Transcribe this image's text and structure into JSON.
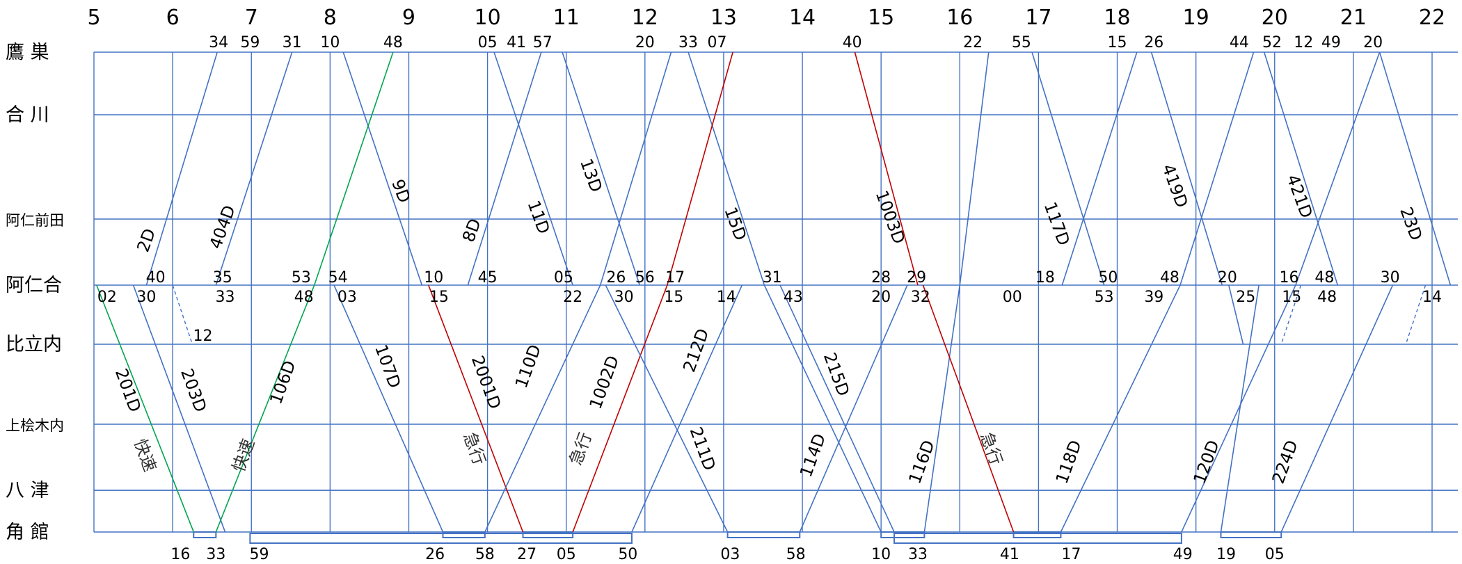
{
  "stations": [
    "鷹 巣",
    "合 川",
    "阿仁前田",
    "阿仁合",
    "比立内",
    "上桧木内",
    "八 津",
    "角 館"
  ],
  "hours": [
    "5",
    "6",
    "7",
    "8",
    "9",
    "10",
    "11",
    "12",
    "13",
    "14",
    "15",
    "16",
    "17",
    "18",
    "19",
    "20",
    "21",
    "22"
  ],
  "colors": {
    "grid": "#4472C4",
    "line": "#4472C4",
    "rapid": "#00A550",
    "express": "#C00000"
  },
  "trains": [
    {
      "name": "2D",
      "stops": [
        {
          "st": 3,
          "t": "5:40"
        },
        {
          "st": 0,
          "t": "6:34"
        }
      ]
    },
    {
      "name": "404D",
      "stops": [
        {
          "st": 3,
          "t": "6:33"
        },
        {
          "st": 0,
          "t": "7:31"
        }
      ]
    },
    {
      "name": "9D",
      "stops": [
        {
          "st": 0,
          "t": "8:10"
        },
        {
          "st": 3,
          "t": "9:10"
        }
      ]
    },
    {
      "name": "8D",
      "stops": [
        {
          "st": 3,
          "t": "9:45"
        },
        {
          "st": 0,
          "t": "10:41"
        }
      ]
    },
    {
      "name": "11D",
      "stops": [
        {
          "st": 0,
          "t": "10:05"
        },
        {
          "st": 3,
          "t": "11:05"
        }
      ]
    },
    {
      "name": "13D",
      "stops": [
        {
          "st": 0,
          "t": "10:57"
        },
        {
          "st": 3,
          "t": "11:56"
        }
      ]
    },
    {
      "name": "15D",
      "stops": [
        {
          "st": 0,
          "t": "12:33"
        },
        {
          "st": 3,
          "t": "13:31"
        }
      ]
    },
    {
      "name": "1003D",
      "stops": [
        {
          "st": 0,
          "t": "14:40"
        },
        {
          "st": 3,
          "t": "15:28"
        }
      ],
      "cls": "express"
    },
    {
      "name": "117D",
      "stops": [
        {
          "st": 0,
          "t": "16:55"
        },
        {
          "st": 3,
          "t": "17:50"
        }
      ]
    },
    {
      "name": "419D",
      "stops": [
        {
          "st": 0,
          "t": "18:26"
        },
        {
          "st": 3,
          "t": "19:20"
        }
      ]
    },
    {
      "name": "421D",
      "stops": [
        {
          "st": 0,
          "t": "19:52"
        },
        {
          "st": 3,
          "t": "20:48"
        }
      ]
    },
    {
      "name": "23D",
      "stops": [
        {
          "st": 0,
          "t": "21:20"
        },
        {
          "st": 3,
          "t": "22:14"
        }
      ]
    },
    {
      "name": "201D",
      "stops": [
        {
          "st": 3,
          "t": "5:02"
        },
        {
          "st": 7,
          "t": "6:16"
        }
      ],
      "cls": "rapid"
    },
    {
      "name": "203D",
      "stops": [
        {
          "st": 3,
          "t": "5:30"
        },
        {
          "st": 7,
          "t": "6:40"
        }
      ]
    },
    {
      "name": "106D",
      "stops": [
        {
          "st": 7,
          "t": "6:33"
        },
        {
          "st": 3,
          "t": "7:48"
        },
        {
          "st": 0,
          "t": "8:48"
        }
      ],
      "cls": "rapid"
    },
    {
      "name": "107D",
      "stops": [
        {
          "st": 3,
          "t": "8:03"
        },
        {
          "st": 7,
          "t": "9:26"
        }
      ]
    },
    {
      "name": "2001D",
      "stops": [
        {
          "st": 3,
          "t": "9:15"
        },
        {
          "st": 7,
          "t": "10:27"
        }
      ],
      "cls": "express"
    },
    {
      "name": "110D",
      "stops": [
        {
          "st": 7,
          "t": "9:58"
        },
        {
          "st": 3,
          "t": "11:26"
        },
        {
          "st": 0,
          "t": "12:20"
        }
      ]
    },
    {
      "name": "1002D",
      "stops": [
        {
          "st": 7,
          "t": "11:05"
        },
        {
          "st": 3,
          "t": "12:17"
        },
        {
          "st": 0,
          "t": "13:07"
        }
      ],
      "cls": "express"
    },
    {
      "name": "211D",
      "stops": [
        {
          "st": 3,
          "t": "11:30"
        },
        {
          "st": 7,
          "t": "13:03"
        }
      ]
    },
    {
      "name": "212D",
      "stops": [
        {
          "st": 7,
          "t": "11:50"
        },
        {
          "st": 3,
          "t": "13:14"
        }
      ]
    },
    {
      "name": "215D",
      "stops": [
        {
          "st": 3,
          "t": "13:43"
        },
        {
          "st": 7,
          "t": "15:10"
        }
      ]
    },
    {
      "name": "114D",
      "stops": [
        {
          "st": 7,
          "t": "13:58"
        },
        {
          "st": 3,
          "t": "15:20"
        }
      ]
    },
    {
      "name": "215D-b",
      "stops": [
        {
          "st": 3,
          "t": "13:31"
        },
        {
          "st": 7,
          "t": "15:00"
        }
      ],
      "nolabel": true
    },
    {
      "name": "116D",
      "stops": [
        {
          "st": 7,
          "t": "15:33"
        },
        {
          "st": 3,
          "t": "16:00"
        },
        {
          "st": 0,
          "t": "16:22"
        }
      ]
    },
    {
      "name": "急行",
      "stops": [
        {
          "st": 3,
          "t": "15:32"
        },
        {
          "st": 7,
          "t": "16:41"
        }
      ],
      "cls": "express",
      "nolabel": true
    },
    {
      "name": "118D",
      "stops": [
        {
          "st": 7,
          "t": "17:17"
        },
        {
          "st": 3,
          "t": "18:48"
        },
        {
          "st": 0,
          "t": "19:44"
        }
      ]
    },
    {
      "name": "120D",
      "stops": [
        {
          "st": 7,
          "t": "18:49"
        },
        {
          "st": 3,
          "t": "20:16"
        },
        {
          "st": 0,
          "t": "21:20"
        }
      ]
    },
    {
      "name": "224D",
      "stops": [
        {
          "st": 7,
          "t": "20:05"
        },
        {
          "st": 3,
          "t": "21:30"
        }
      ]
    },
    {
      "name": "x1",
      "stops": [
        {
          "st": 3,
          "t": "17:18"
        },
        {
          "st": 0,
          "t": "18:15"
        }
      ],
      "nolabel": true
    },
    {
      "name": "x2",
      "stops": [
        {
          "st": 3,
          "t": "19:25"
        },
        {
          "st": 4,
          "t": "19:36"
        }
      ],
      "nolabel": true
    },
    {
      "name": "x3",
      "stops": [
        {
          "st": 3,
          "t": "19:48"
        },
        {
          "st": 7,
          "t": "19:19"
        }
      ],
      "nolabel": true
    }
  ],
  "train_labels": [
    {
      "text": "2D",
      "h": "5:44",
      "st": 2.35,
      "rot": -70
    },
    {
      "text": "404D",
      "h": "6:42",
      "st": 2.15,
      "rot": -70
    },
    {
      "text": "9D",
      "h": "8:50",
      "st": 1.75,
      "rot": 70
    },
    {
      "text": "8D",
      "h": "9:52",
      "st": 2.2,
      "rot": -70
    },
    {
      "text": "11D",
      "h": "10:35",
      "st": 2.0,
      "rot": 70
    },
    {
      "text": "13D",
      "h": "11:15",
      "st": 1.6,
      "rot": 70
    },
    {
      "text": "15D",
      "h": "13:05",
      "st": 2.1,
      "rot": 70
    },
    {
      "text": "1003D",
      "h": "15:03",
      "st": 2.0,
      "rot": 70
    },
    {
      "text": "117D",
      "h": "17:10",
      "st": 2.1,
      "rot": 70
    },
    {
      "text": "419D",
      "h": "18:40",
      "st": 1.7,
      "rot": 70
    },
    {
      "text": "421D",
      "h": "20:15",
      "st": 1.8,
      "rot": 70
    },
    {
      "text": "23D",
      "h": "21:40",
      "st": 2.1,
      "rot": 70
    },
    {
      "text": "201D",
      "h": "5:22",
      "st": 4.6,
      "rot": 70
    },
    {
      "text": "203D",
      "h": "6:12",
      "st": 4.6,
      "rot": 70
    },
    {
      "text": "106D",
      "h": "7:28",
      "st": 4.5,
      "rot": -70
    },
    {
      "text": "107D",
      "h": "8:40",
      "st": 4.3,
      "rot": 70
    },
    {
      "text": "2001D",
      "h": "9:55",
      "st": 4.5,
      "rot": 70
    },
    {
      "text": "110D",
      "h": "10:35",
      "st": 4.3,
      "rot": -70
    },
    {
      "text": "1002D",
      "h": "11:33",
      "st": 4.5,
      "rot": -70
    },
    {
      "text": "211D",
      "h": "12:40",
      "st": 5.4,
      "rot": 70
    },
    {
      "text": "212D",
      "h": "12:43",
      "st": 4.1,
      "rot": -70
    },
    {
      "text": "215D",
      "h": "14:22",
      "st": 4.4,
      "rot": 70
    },
    {
      "text": "114D",
      "h": "14:12",
      "st": 5.5,
      "rot": -70
    },
    {
      "text": "116D",
      "h": "15:35",
      "st": 5.6,
      "rot": -70
    },
    {
      "text": "118D",
      "h": "17:27",
      "st": 5.6,
      "rot": -70
    },
    {
      "text": "120D",
      "h": "19:12",
      "st": 5.6,
      "rot": -70
    },
    {
      "text": "224D",
      "h": "20:12",
      "st": 5.6,
      "rot": -70
    }
  ],
  "notes": [
    {
      "text": "快速",
      "h": "5:35",
      "st": 5.5,
      "rot": 70
    },
    {
      "text": "快速",
      "h": "6:58",
      "st": 5.5,
      "rot": -70
    },
    {
      "text": "急行",
      "h": "9:46",
      "st": 5.4,
      "rot": 70
    },
    {
      "text": "急行",
      "h": "11:15",
      "st": 5.4,
      "rot": -70
    },
    {
      "text": "急行",
      "h": "16:20",
      "st": 5.4,
      "rot": 70
    }
  ],
  "times_top": [
    {
      "t": "34",
      "h": "6:35"
    },
    {
      "t": "59",
      "h": "6:59"
    },
    {
      "t": "31",
      "h": "7:31"
    },
    {
      "t": "10",
      "h": "8:00"
    },
    {
      "t": "48",
      "h": "8:48"
    },
    {
      "t": "05",
      "h": "10:00"
    },
    {
      "t": "41",
      "h": "10:22"
    },
    {
      "t": "57",
      "h": "10:42"
    },
    {
      "t": "20",
      "h": "12:00"
    },
    {
      "t": "33",
      "h": "12:33"
    },
    {
      "t": "07",
      "h": "12:55"
    },
    {
      "t": "40",
      "h": "14:38"
    },
    {
      "t": "22",
      "h": "16:10"
    },
    {
      "t": "55",
      "h": "16:47"
    },
    {
      "t": "15",
      "h": "18:00"
    },
    {
      "t": "26",
      "h": "18:28"
    },
    {
      "t": "44",
      "h": "19:33"
    },
    {
      "t": "52",
      "h": "19:58"
    },
    {
      "t": "12",
      "h": "20:22"
    },
    {
      "t": "49",
      "h": "20:43"
    },
    {
      "t": "20",
      "h": "21:15"
    }
  ],
  "times_ani_upper": [
    {
      "t": "40",
      "h": "5:47"
    },
    {
      "t": "35",
      "h": "6:38"
    },
    {
      "t": "53",
      "h": "7:38"
    },
    {
      "t": "54",
      "h": "8:06"
    },
    {
      "t": "10",
      "h": "9:19"
    },
    {
      "t": "45",
      "h": "10:00"
    },
    {
      "t": "05",
      "h": "10:58"
    },
    {
      "t": "26",
      "h": "11:38"
    },
    {
      "t": "56",
      "h": "12:00"
    },
    {
      "t": "17",
      "h": "12:23"
    },
    {
      "t": "31",
      "h": "13:37"
    },
    {
      "t": "28",
      "h": "15:00"
    },
    {
      "t": "29",
      "h": "15:27"
    },
    {
      "t": "18",
      "h": "17:05"
    },
    {
      "t": "50",
      "h": "17:53"
    },
    {
      "t": "48",
      "h": "18:40"
    },
    {
      "t": "20",
      "h": "19:24"
    },
    {
      "t": "16",
      "h": "20:11"
    },
    {
      "t": "48",
      "h": "20:38"
    },
    {
      "t": "30",
      "h": "21:28"
    }
  ],
  "times_ani_lower": [
    {
      "t": "02",
      "h": "5:10"
    },
    {
      "t": "30",
      "h": "5:40"
    },
    {
      "t": "33",
      "h": "6:40"
    },
    {
      "t": "48",
      "h": "7:40"
    },
    {
      "t": "03",
      "h": "8:13"
    },
    {
      "t": "15",
      "h": "9:23"
    },
    {
      "t": "22",
      "h": "11:05"
    },
    {
      "t": "30",
      "h": "11:44"
    },
    {
      "t": "15",
      "h": "12:22"
    },
    {
      "t": "14",
      "h": "13:02"
    },
    {
      "t": "43",
      "h": "13:53"
    },
    {
      "t": "20",
      "h": "15:00"
    },
    {
      "t": "32",
      "h": "15:30"
    },
    {
      "t": "00",
      "h": "16:40"
    },
    {
      "t": "53",
      "h": "17:50"
    },
    {
      "t": "39",
      "h": "18:28"
    },
    {
      "t": "25",
      "h": "19:38"
    },
    {
      "t": "15",
      "h": "20:13"
    },
    {
      "t": "48",
      "h": "20:40"
    },
    {
      "t": "14",
      "h": "22:00"
    }
  ],
  "times_hitachi": [
    {
      "t": "12",
      "h": "6:23"
    }
  ],
  "times_bottom": [
    {
      "t": "16",
      "h": "6:06"
    },
    {
      "t": "33",
      "h": "6:33"
    },
    {
      "t": "59",
      "h": "7:06"
    },
    {
      "t": "26",
      "h": "9:20"
    },
    {
      "t": "58",
      "h": "9:58"
    },
    {
      "t": "27",
      "h": "10:30"
    },
    {
      "t": "05",
      "h": "11:00"
    },
    {
      "t": "50",
      "h": "11:47"
    },
    {
      "t": "03",
      "h": "13:05"
    },
    {
      "t": "58",
      "h": "13:55"
    },
    {
      "t": "10",
      "h": "15:00"
    },
    {
      "t": "33",
      "h": "15:28"
    },
    {
      "t": "41",
      "h": "16:38"
    },
    {
      "t": "17",
      "h": "17:25"
    },
    {
      "t": "49",
      "h": "18:50"
    },
    {
      "t": "19",
      "h": "19:23"
    },
    {
      "t": "05",
      "h": "20:00"
    }
  ],
  "dashed": [
    {
      "from": {
        "h": "6:00",
        "st": 3
      },
      "to": {
        "h": "6:15",
        "st": 4
      }
    },
    {
      "from": {
        "h": "20:20",
        "st": 3
      },
      "to": {
        "h": "20:05",
        "st": 4
      }
    },
    {
      "from": {
        "h": "21:55",
        "st": 3
      },
      "to": {
        "h": "21:40",
        "st": 4
      }
    }
  ],
  "layovers": [
    {
      "from": "6:16",
      "to": "6:33",
      "row": 0
    },
    {
      "from": "6:59",
      "to": "11:50",
      "row": 1
    },
    {
      "from": "9:26",
      "to": "9:58",
      "row": 0
    },
    {
      "from": "10:27",
      "to": "11:05",
      "row": 0
    },
    {
      "from": "13:03",
      "to": "13:58",
      "row": 0
    },
    {
      "from": "15:00",
      "to": "15:33",
      "row": 0
    },
    {
      "from": "15:10",
      "to": "18:49",
      "row": 1
    },
    {
      "from": "16:41",
      "to": "17:17",
      "row": 0
    },
    {
      "from": "19:19",
      "to": "20:05",
      "row": 0
    }
  ]
}
